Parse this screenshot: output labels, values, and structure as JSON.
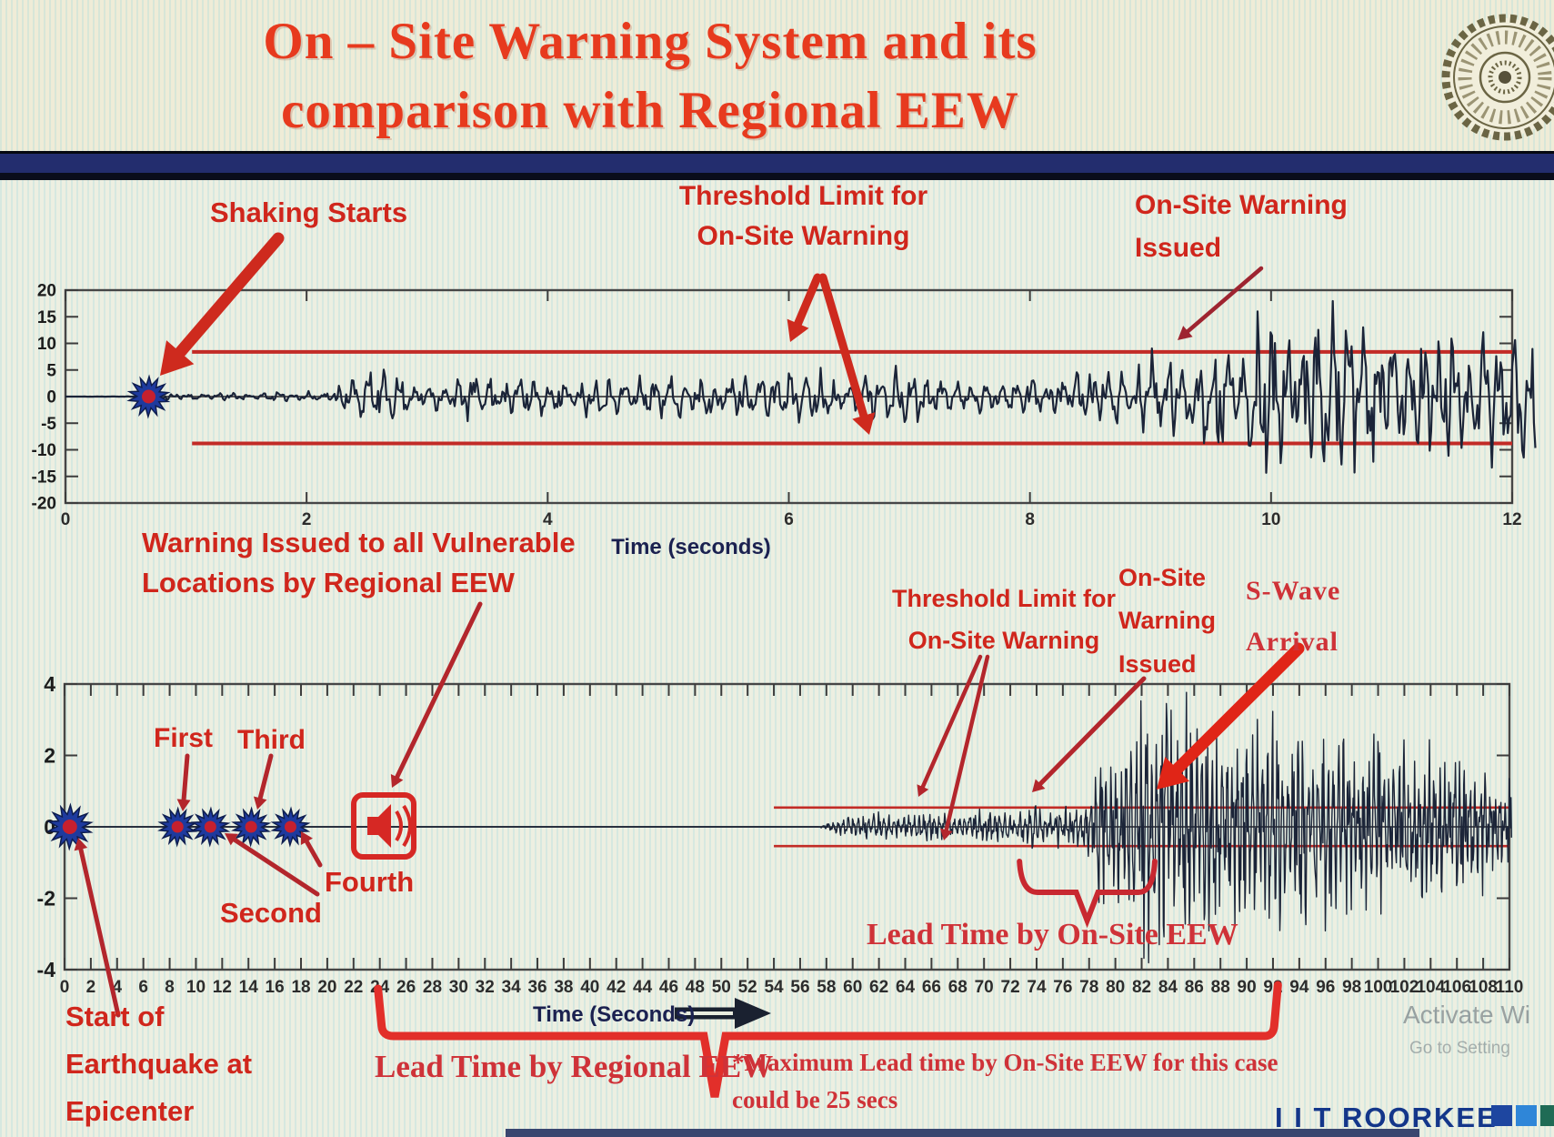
{
  "header": {
    "title": "On – Site Warning System and its\ncomparison with Regional EEW"
  },
  "chart_data": [
    {
      "type": "line",
      "name": "On-site accelerogram with warning threshold",
      "xlabel": "Time (seconds)",
      "xlim": [
        0,
        12
      ],
      "ylim": [
        -20,
        20
      ],
      "x_ticks": [
        0,
        2,
        4,
        6,
        8,
        10,
        12
      ],
      "y_ticks": [
        20,
        15,
        10,
        5,
        0,
        -5,
        -10,
        -15,
        -20
      ],
      "grid": false,
      "threshold_upper": 8.4,
      "threshold_lower": -8.8,
      "threshold_x_start": 1.05,
      "shaking_start_x": 0.69,
      "onsite_warning_issued_x": 9.2,
      "envelope": [
        [
          0,
          0
        ],
        [
          0.66,
          0.05
        ],
        [
          0.72,
          1.3
        ],
        [
          0.85,
          0.55
        ],
        [
          1.6,
          0.7
        ],
        [
          2.2,
          0.9
        ],
        [
          2.32,
          3.2
        ],
        [
          2.55,
          4.6
        ],
        [
          2.8,
          3.6
        ],
        [
          2.95,
          2.1
        ],
        [
          3.15,
          2.9
        ],
        [
          3.45,
          4.7
        ],
        [
          3.75,
          3.1
        ],
        [
          4.05,
          4.5
        ],
        [
          4.4,
          3.1
        ],
        [
          4.9,
          3.3
        ],
        [
          5.25,
          4.5
        ],
        [
          5.6,
          3.3
        ],
        [
          6.1,
          5.1
        ],
        [
          6.5,
          3.5
        ],
        [
          6.95,
          4.9
        ],
        [
          7.35,
          3.3
        ],
        [
          7.65,
          2.9
        ],
        [
          8,
          3.6
        ],
        [
          8.45,
          4.6
        ],
        [
          8.8,
          5.2
        ],
        [
          9.05,
          8.8
        ],
        [
          9.25,
          6.2
        ],
        [
          9.5,
          9.5
        ],
        [
          9.75,
          11.5
        ],
        [
          9.95,
          15.5
        ],
        [
          10.15,
          11.5
        ],
        [
          10.4,
          17
        ],
        [
          10.65,
          12.5
        ],
        [
          10.9,
          15
        ],
        [
          11.15,
          9.5
        ],
        [
          11.45,
          13
        ],
        [
          11.75,
          10.5
        ],
        [
          12,
          11.5
        ]
      ],
      "seed": 11
    },
    {
      "type": "line",
      "name": "Regional EEW versus On-Site EEW timeline seismogram",
      "xlabel": "Time (Seconds)",
      "xlim": [
        0,
        110
      ],
      "ylim": [
        -4,
        4
      ],
      "x_ticks": [
        0,
        2,
        4,
        6,
        8,
        10,
        12,
        14,
        16,
        18,
        20,
        22,
        24,
        26,
        28,
        30,
        32,
        34,
        36,
        38,
        40,
        42,
        44,
        46,
        48,
        50,
        52,
        54,
        56,
        58,
        60,
        62,
        64,
        66,
        68,
        70,
        72,
        74,
        76,
        78,
        80,
        82,
        84,
        86,
        88,
        90,
        92,
        94,
        96,
        98,
        100,
        102,
        104,
        106,
        108,
        110
      ],
      "y_ticks": [
        4,
        2,
        0,
        -2,
        -4
      ],
      "grid": false,
      "threshold_upper": 0.54,
      "threshold_lower": -0.54,
      "threshold_x_start": 54,
      "epicenter_x": 0.4,
      "p_wave_picks": [
        {
          "label": "First",
          "t": 8.6
        },
        {
          "label": "Second",
          "t": 11.1
        },
        {
          "label": "Third",
          "t": 14.2
        },
        {
          "label": "Fourth",
          "t": 17.2
        }
      ],
      "regional_warning_x": 24.3,
      "p_wave_onset_x": 57.4,
      "onsite_warning_issued_x": 73.6,
      "s_wave_arrival_x": 82.8,
      "lead_time_regional": {
        "from": 24,
        "to": 92.3
      },
      "lead_time_onsite": {
        "from": 72.7,
        "to": 83
      },
      "envelope": [
        [
          0,
          0
        ],
        [
          57.4,
          0
        ],
        [
          58,
          0.12
        ],
        [
          59,
          0.2
        ],
        [
          60,
          0.3
        ],
        [
          62,
          0.36
        ],
        [
          64,
          0.3
        ],
        [
          66,
          0.4
        ],
        [
          68,
          0.34
        ],
        [
          70,
          0.44
        ],
        [
          72,
          0.38
        ],
        [
          73.5,
          0.6
        ],
        [
          74.5,
          0.42
        ],
        [
          76,
          0.52
        ],
        [
          77.5,
          0.48
        ],
        [
          78.3,
          1.3
        ],
        [
          79,
          2.3
        ],
        [
          80,
          1.7
        ],
        [
          81,
          2.9
        ],
        [
          82,
          3.7
        ],
        [
          83,
          2.7
        ],
        [
          84,
          3.8
        ],
        [
          85,
          2.9
        ],
        [
          86,
          3.9
        ],
        [
          87,
          2.7
        ],
        [
          88,
          3.3
        ],
        [
          89,
          2.3
        ],
        [
          90,
          3.6
        ],
        [
          91,
          2.5
        ],
        [
          92,
          3.1
        ],
        [
          93,
          2.1
        ],
        [
          94,
          2.7
        ],
        [
          95,
          1.9
        ],
        [
          96,
          2.9
        ],
        [
          97,
          2.1
        ],
        [
          98,
          2.5
        ],
        [
          99,
          1.8
        ],
        [
          100,
          2.7
        ],
        [
          101,
          1.9
        ],
        [
          102,
          2.3
        ],
        [
          103,
          1.7
        ],
        [
          104,
          2.1
        ],
        [
          105,
          1.6
        ],
        [
          106,
          2
        ],
        [
          107,
          1.5
        ],
        [
          108,
          1.8
        ],
        [
          109,
          1.4
        ],
        [
          110.2,
          1.6
        ]
      ],
      "seed": 29
    }
  ],
  "annotations": {
    "top": {
      "shaking": "Shaking Starts",
      "threshold": "Threshold Limit for\nOn-Site Warning",
      "issued": "On-Site Warning\nIssued"
    },
    "bottom": {
      "regional_warning": "Warning Issued to all Vulnerable\nLocations by Regional EEW",
      "threshold": "Threshold Limit for\nOn-Site Warning",
      "issued": "On-Site\nWarning\nIssued",
      "s_wave": "S-Wave\nArrival",
      "lead_onsite": "Lead Time by On-Site EEW",
      "epicenter": "Start of\nEarthquake at\nEpicenter",
      "lead_regional": "Lead Time by Regional EEW",
      "max_note": "*Maximum Lead time by On-Site EEW for this case\ncould be 25 secs"
    }
  },
  "footer": {
    "watermark_line1": "Activate Wi",
    "watermark_line2": "Go to Setting",
    "brand": "I I T ROORKEE",
    "brand_square_colors": [
      "#1e46a0",
      "#2f86d8",
      "#1f6b55"
    ]
  }
}
